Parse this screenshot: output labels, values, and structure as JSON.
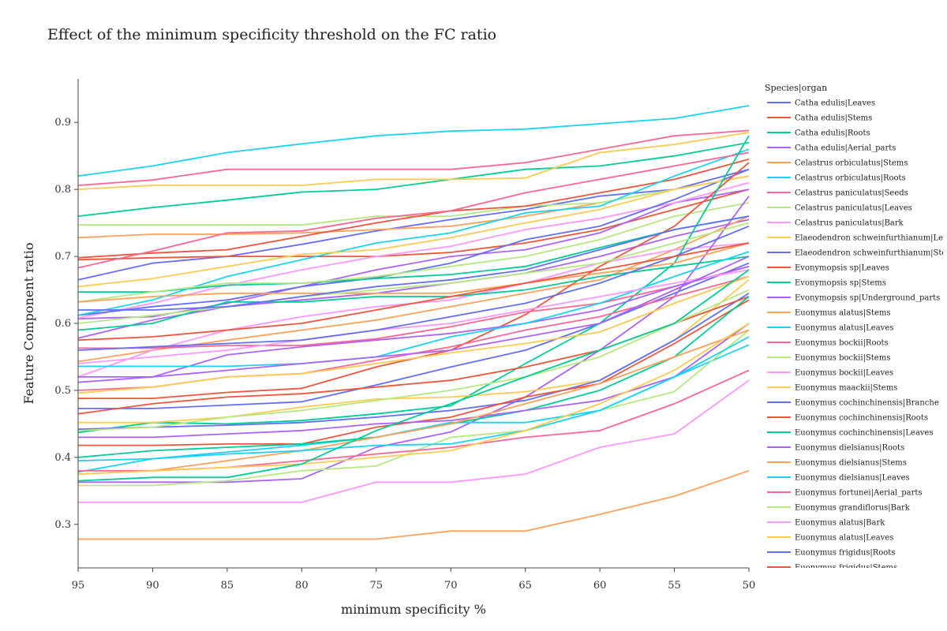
{
  "chart_data": {
    "type": "line",
    "title": "Effect of the minimum specificity threshold on the FC ratio",
    "xlabel": "minimum specificity %",
    "ylabel": "Feature Component ratio",
    "x": [
      95,
      90,
      85,
      80,
      75,
      70,
      65,
      60,
      55,
      50
    ],
    "x_reversed": true,
    "ylim": [
      0.235,
      0.965
    ],
    "yticks": [
      0.3,
      0.4,
      0.5,
      0.6,
      0.7,
      0.8,
      0.9
    ],
    "grid": false,
    "legend_title": "Species|organ",
    "legend_position": "right",
    "legend_clipped_last": "Euonymus frigidus|Stems",
    "series": [
      {
        "name": "Catha edulis|Leaves",
        "color": "#636efa",
        "values": [
          0.665,
          0.69,
          0.7,
          0.718,
          0.738,
          0.755,
          0.77,
          0.79,
          0.8,
          0.83
        ]
      },
      {
        "name": "Catha edulis|Stems",
        "color": "#ef553b",
        "values": [
          0.695,
          0.698,
          0.7,
          0.7,
          0.7,
          0.706,
          0.72,
          0.74,
          0.77,
          0.8
        ]
      },
      {
        "name": "Catha edulis|Roots",
        "color": "#00cc96",
        "values": [
          0.76,
          0.773,
          0.784,
          0.796,
          0.8,
          0.815,
          0.83,
          0.835,
          0.85,
          0.87
        ]
      },
      {
        "name": "Catha edulis|Aerial_parts",
        "color": "#ab63fa",
        "values": [
          0.607,
          0.61,
          0.63,
          0.655,
          0.68,
          0.7,
          0.71,
          0.735,
          0.78,
          0.8
        ]
      },
      {
        "name": "Celastrus orbiculatus|Stems",
        "color": "#ffa15a",
        "values": [
          0.728,
          0.733,
          0.733,
          0.735,
          0.74,
          0.745,
          0.76,
          0.78,
          0.8,
          0.82
        ]
      },
      {
        "name": "Celastrus orbiculatus|Roots",
        "color": "#19d3f3",
        "values": [
          0.82,
          0.835,
          0.855,
          0.868,
          0.88,
          0.887,
          0.89,
          0.898,
          0.906,
          0.925
        ]
      },
      {
        "name": "Celastrus paniculatus|Seeds",
        "color": "#ff6692",
        "values": [
          0.806,
          0.814,
          0.83,
          0.83,
          0.83,
          0.83,
          0.84,
          0.86,
          0.88,
          0.888
        ]
      },
      {
        "name": "Celastrus paniculatus|Leaves",
        "color": "#b6e880",
        "values": [
          0.747,
          0.747,
          0.747,
          0.747,
          0.76,
          0.76,
          0.775,
          0.78,
          0.8,
          0.82
        ]
      },
      {
        "name": "Celastrus paniculatus|Bark",
        "color": "#ff97ff",
        "values": [
          0.608,
          0.63,
          0.657,
          0.68,
          0.7,
          0.715,
          0.74,
          0.757,
          0.78,
          0.81
        ]
      },
      {
        "name": "Elaeodendron schweinfurthianum|Leaves",
        "color": "#fecb52",
        "values": [
          0.8,
          0.806,
          0.806,
          0.806,
          0.815,
          0.815,
          0.817,
          0.855,
          0.867,
          0.885
        ]
      },
      {
        "name": "Elaeodendron schweinfurthianum|Stems",
        "color": "#636efa",
        "values": [
          0.612,
          0.625,
          0.635,
          0.655,
          0.668,
          0.69,
          0.725,
          0.745,
          0.785,
          0.83
        ]
      },
      {
        "name": "Evonymopsis sp|Leaves",
        "color": "#ef553b",
        "values": [
          0.698,
          0.705,
          0.71,
          0.73,
          0.75,
          0.768,
          0.775,
          0.795,
          0.815,
          0.845
        ]
      },
      {
        "name": "Evonymopsis sp|Stems",
        "color": "#00cc96",
        "values": [
          0.647,
          0.647,
          0.657,
          0.66,
          0.667,
          0.673,
          0.685,
          0.713,
          0.74,
          0.76
        ]
      },
      {
        "name": "Evonymopsis sp|Underground_parts",
        "color": "#ab63fa",
        "values": [
          0.578,
          0.605,
          0.625,
          0.635,
          0.645,
          0.66,
          0.675,
          0.7,
          0.73,
          0.755
        ]
      },
      {
        "name": "Euonymus alatus|Stems",
        "color": "#ffa15a",
        "values": [
          0.543,
          0.56,
          0.575,
          0.59,
          0.605,
          0.625,
          0.645,
          0.665,
          0.71,
          0.76
        ]
      },
      {
        "name": "Euonymus alatus|Leaves",
        "color": "#19d3f3",
        "values": [
          0.612,
          0.635,
          0.67,
          0.695,
          0.72,
          0.735,
          0.765,
          0.775,
          0.82,
          0.86
        ]
      },
      {
        "name": "Euonymus bockii|Roots",
        "color": "#ff6692",
        "values": [
          0.683,
          0.708,
          0.735,
          0.738,
          0.757,
          0.768,
          0.795,
          0.815,
          0.835,
          0.855
        ]
      },
      {
        "name": "Euonymus bockii|Stems",
        "color": "#b6e880",
        "values": [
          0.632,
          0.647,
          0.66,
          0.66,
          0.67,
          0.685,
          0.7,
          0.725,
          0.76,
          0.78
        ]
      },
      {
        "name": "Euonymus bockii|Leaves",
        "color": "#ff97ff",
        "values": [
          0.52,
          0.56,
          0.59,
          0.61,
          0.625,
          0.635,
          0.66,
          0.69,
          0.71,
          0.72
        ]
      },
      {
        "name": "Euonymus maackii|Stems",
        "color": "#fecb52",
        "values": [
          0.655,
          0.667,
          0.685,
          0.703,
          0.71,
          0.728,
          0.75,
          0.77,
          0.8,
          0.82
        ]
      },
      {
        "name": "Euonymus cochinchinensis|Branche",
        "color": "#636efa",
        "values": [
          0.473,
          0.473,
          0.478,
          0.483,
          0.508,
          0.535,
          0.56,
          0.6,
          0.645,
          0.69
        ]
      },
      {
        "name": "Euonymus cochinchinensis|Roots",
        "color": "#ef553b",
        "values": [
          0.488,
          0.488,
          0.497,
          0.503,
          0.535,
          0.56,
          0.613,
          0.685,
          0.745,
          0.84
        ]
      },
      {
        "name": "Euonymus cochinchinensis|Leaves",
        "color": "#00cc96",
        "values": [
          0.437,
          0.452,
          0.45,
          0.455,
          0.465,
          0.477,
          0.54,
          0.6,
          0.69,
          0.88
        ]
      },
      {
        "name": "Euonymus dielsianus|Roots",
        "color": "#ab63fa",
        "values": [
          0.363,
          0.363,
          0.363,
          0.368,
          0.415,
          0.438,
          0.49,
          0.56,
          0.64,
          0.79
        ]
      },
      {
        "name": "Euonymus dielsianus|Stems",
        "color": "#ffa15a",
        "values": [
          0.278,
          0.278,
          0.278,
          0.278,
          0.278,
          0.29,
          0.29,
          0.315,
          0.342,
          0.38
        ]
      },
      {
        "name": "Euonymus dielsianus|Leaves",
        "color": "#19d3f3",
        "values": [
          0.378,
          0.398,
          0.408,
          0.418,
          0.43,
          0.452,
          0.452,
          0.47,
          0.52,
          0.568
        ]
      },
      {
        "name": "Euonymus fortunei|Aerial_parts",
        "color": "#ff6692",
        "values": [
          0.563,
          0.563,
          0.567,
          0.567,
          0.577,
          0.595,
          0.617,
          0.63,
          0.655,
          0.685
        ]
      },
      {
        "name": "Euonymus grandiflorus|Bark",
        "color": "#b6e880",
        "values": [
          0.358,
          0.358,
          0.365,
          0.38,
          0.387,
          0.43,
          0.44,
          0.47,
          0.498,
          0.59
        ]
      },
      {
        "name": "Euonymus alatus|Bark",
        "color": "#ff97ff",
        "values": [
          0.333,
          0.333,
          0.333,
          0.333,
          0.363,
          0.363,
          0.375,
          0.415,
          0.435,
          0.515
        ]
      },
      {
        "name": "Euonymus alatus|Leaves",
        "color": "#fecb52",
        "values": [
          0.452,
          0.452,
          0.46,
          0.475,
          0.487,
          0.49,
          0.498,
          0.515,
          0.575,
          0.665
        ]
      },
      {
        "name": "Euonymus frigidus|Roots",
        "color": "#636efa",
        "values": [
          0.442,
          0.445,
          0.448,
          0.452,
          0.46,
          0.47,
          0.485,
          0.515,
          0.575,
          0.645
        ]
      },
      {
        "name": "Euonymus frigidus|Stems",
        "color": "#ef553b",
        "values": [
          0.418,
          0.418,
          0.42,
          0.42,
          0.445,
          0.46,
          0.49,
          0.51,
          0.57,
          0.635
        ]
      },
      {
        "color": "#00cc96",
        "values": [
          0.59,
          0.6,
          0.632,
          0.632,
          0.64,
          0.64,
          0.65,
          0.67,
          0.685,
          0.7
        ]
      },
      {
        "color": "#ab63fa",
        "values": [
          0.512,
          0.52,
          0.553,
          0.565,
          0.575,
          0.585,
          0.6,
          0.62,
          0.655,
          0.685
        ]
      },
      {
        "color": "#ffa15a",
        "values": [
          0.632,
          0.64,
          0.645,
          0.645,
          0.645,
          0.645,
          0.66,
          0.675,
          0.69,
          0.72
        ]
      },
      {
        "color": "#19d3f3",
        "values": [
          0.536,
          0.536,
          0.536,
          0.54,
          0.55,
          0.58,
          0.6,
          0.63,
          0.67,
          0.707
        ]
      },
      {
        "color": "#ff6692",
        "values": [
          0.5,
          0.505,
          0.52,
          0.525,
          0.545,
          0.565,
          0.59,
          0.61,
          0.64,
          0.67
        ]
      },
      {
        "color": "#b6e880",
        "values": [
          0.6,
          0.612,
          0.625,
          0.64,
          0.65,
          0.66,
          0.675,
          0.69,
          0.72,
          0.75
        ]
      },
      {
        "color": "#ff97ff",
        "values": [
          0.54,
          0.55,
          0.56,
          0.575,
          0.59,
          0.6,
          0.62,
          0.64,
          0.66,
          0.68
        ]
      },
      {
        "color": "#fecb52",
        "values": [
          0.496,
          0.505,
          0.52,
          0.525,
          0.54,
          0.556,
          0.57,
          0.587,
          0.63,
          0.67
        ]
      },
      {
        "color": "#636efa",
        "values": [
          0.56,
          0.565,
          0.57,
          0.575,
          0.59,
          0.61,
          0.63,
          0.66,
          0.7,
          0.745
        ]
      },
      {
        "color": "#ef553b",
        "values": [
          0.465,
          0.48,
          0.49,
          0.495,
          0.505,
          0.515,
          0.535,
          0.56,
          0.6,
          0.64
        ]
      },
      {
        "color": "#00cc96",
        "values": [
          0.4,
          0.41,
          0.415,
          0.42,
          0.43,
          0.45,
          0.47,
          0.5,
          0.55,
          0.64
        ]
      },
      {
        "color": "#ab63fa",
        "values": [
          0.43,
          0.43,
          0.435,
          0.44,
          0.45,
          0.455,
          0.47,
          0.485,
          0.52,
          0.6
        ]
      },
      {
        "color": "#ffa15a",
        "values": [
          0.375,
          0.38,
          0.395,
          0.41,
          0.43,
          0.45,
          0.48,
          0.51,
          0.55,
          0.59
        ]
      },
      {
        "color": "#19d3f3",
        "values": [
          0.395,
          0.398,
          0.405,
          0.41,
          0.418,
          0.42,
          0.44,
          0.47,
          0.52,
          0.58
        ]
      },
      {
        "color": "#ff6692",
        "values": [
          0.38,
          0.38,
          0.385,
          0.395,
          0.405,
          0.415,
          0.43,
          0.44,
          0.48,
          0.53
        ]
      },
      {
        "color": "#b6e880",
        "values": [
          0.44,
          0.445,
          0.46,
          0.47,
          0.485,
          0.5,
          0.52,
          0.55,
          0.6,
          0.65
        ]
      },
      {
        "color": "#fecb52",
        "values": [
          0.375,
          0.38,
          0.385,
          0.39,
          0.4,
          0.41,
          0.44,
          0.48,
          0.53,
          0.6
        ]
      },
      {
        "color": "#636efa",
        "values": [
          0.62,
          0.62,
          0.625,
          0.64,
          0.655,
          0.665,
          0.68,
          0.71,
          0.74,
          0.76
        ]
      },
      {
        "color": "#ef553b",
        "values": [
          0.575,
          0.58,
          0.59,
          0.6,
          0.62,
          0.64,
          0.66,
          0.68,
          0.7,
          0.72
        ]
      },
      {
        "color": "#00cc96",
        "values": [
          0.365,
          0.37,
          0.37,
          0.39,
          0.44,
          0.48,
          0.52,
          0.56,
          0.6,
          0.68
        ]
      },
      {
        "color": "#ab63fa",
        "values": [
          0.52,
          0.52,
          0.53,
          0.54,
          0.55,
          0.56,
          0.58,
          0.6,
          0.65,
          0.7
        ]
      }
    ]
  }
}
